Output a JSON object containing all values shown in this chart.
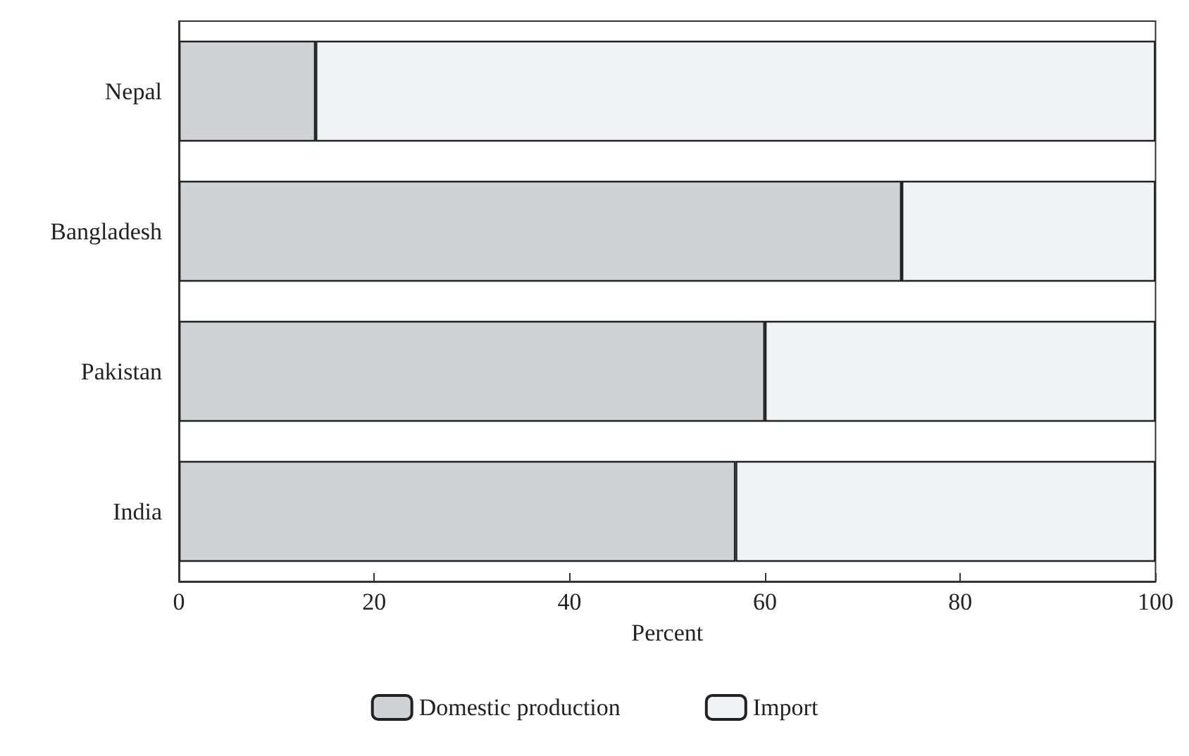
{
  "chart_data": {
    "type": "bar",
    "orientation": "horizontal",
    "stacked": true,
    "xlabel": "Percent",
    "categories": [
      "Nepal",
      "Bangladesh",
      "Pakistan",
      "India"
    ],
    "series": [
      {
        "name": "Domestic production",
        "color": "#d1d2d4",
        "values": [
          14,
          74,
          60,
          57
        ]
      },
      {
        "name": "Import",
        "color": "#f1f2f3",
        "values": [
          86,
          26,
          40,
          43
        ]
      }
    ],
    "xlim": [
      0,
      100
    ],
    "xticks": [
      0,
      20,
      40,
      60,
      80,
      100
    ],
    "grid": false,
    "legend": "bottom"
  }
}
